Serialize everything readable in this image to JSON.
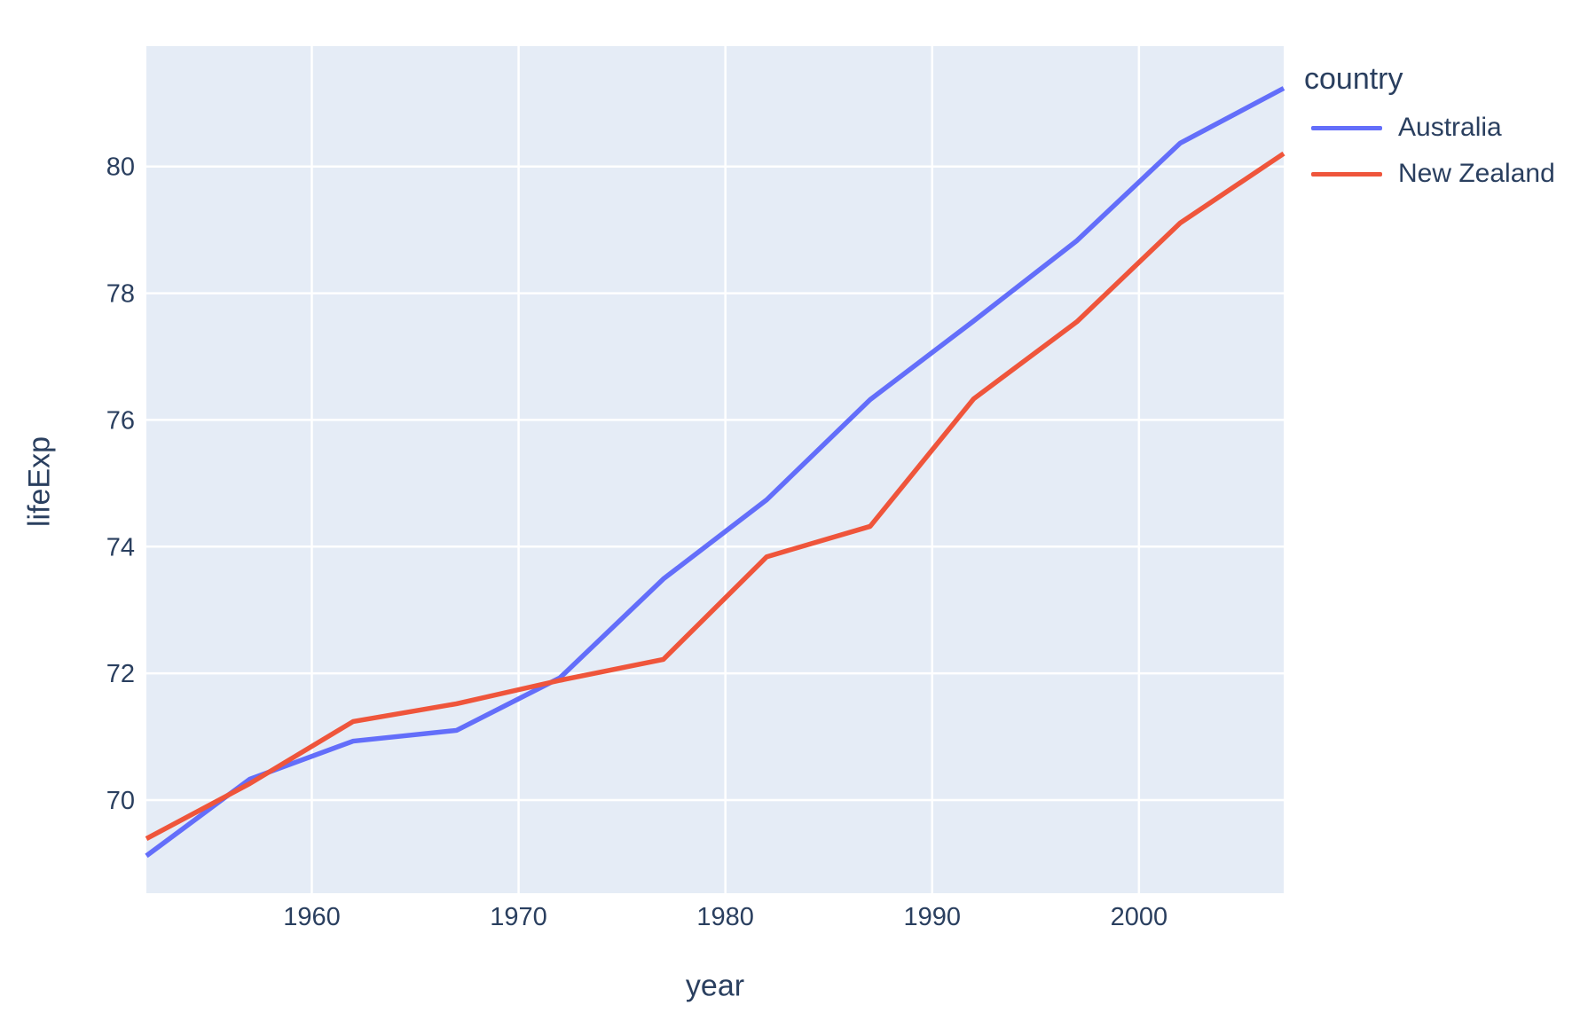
{
  "figure": {
    "background": "#FFFFFF",
    "text_color": "#2a3f5f",
    "legend": {
      "title": "country"
    }
  },
  "chart_data": {
    "type": "line",
    "title": "",
    "xlabel": "year",
    "ylabel": "lifeExp",
    "x": [
      1952,
      1957,
      1962,
      1967,
      1972,
      1977,
      1982,
      1987,
      1992,
      1997,
      2002,
      2007
    ],
    "series": [
      {
        "name": "Australia",
        "color": "#636EFA",
        "values": [
          69.12,
          70.33,
          70.93,
          71.1,
          71.93,
          73.49,
          74.74,
          76.32,
          77.56,
          78.83,
          80.37,
          81.235
        ]
      },
      {
        "name": "New Zealand",
        "color": "#EF553B",
        "values": [
          69.39,
          70.26,
          71.24,
          71.52,
          71.89,
          72.22,
          73.84,
          74.32,
          76.33,
          77.55,
          79.11,
          80.204
        ]
      }
    ],
    "xlim": [
      1952,
      2007
    ],
    "ylim": [
      68.53,
      81.9
    ],
    "xticks": [
      1960,
      1970,
      1980,
      1990,
      2000
    ],
    "yticks": [
      70,
      72,
      74,
      76,
      78,
      80
    ],
    "grid": true,
    "legend_position": "right",
    "plot_bg": "#E5ECF6",
    "grid_color": "#FFFFFF"
  }
}
